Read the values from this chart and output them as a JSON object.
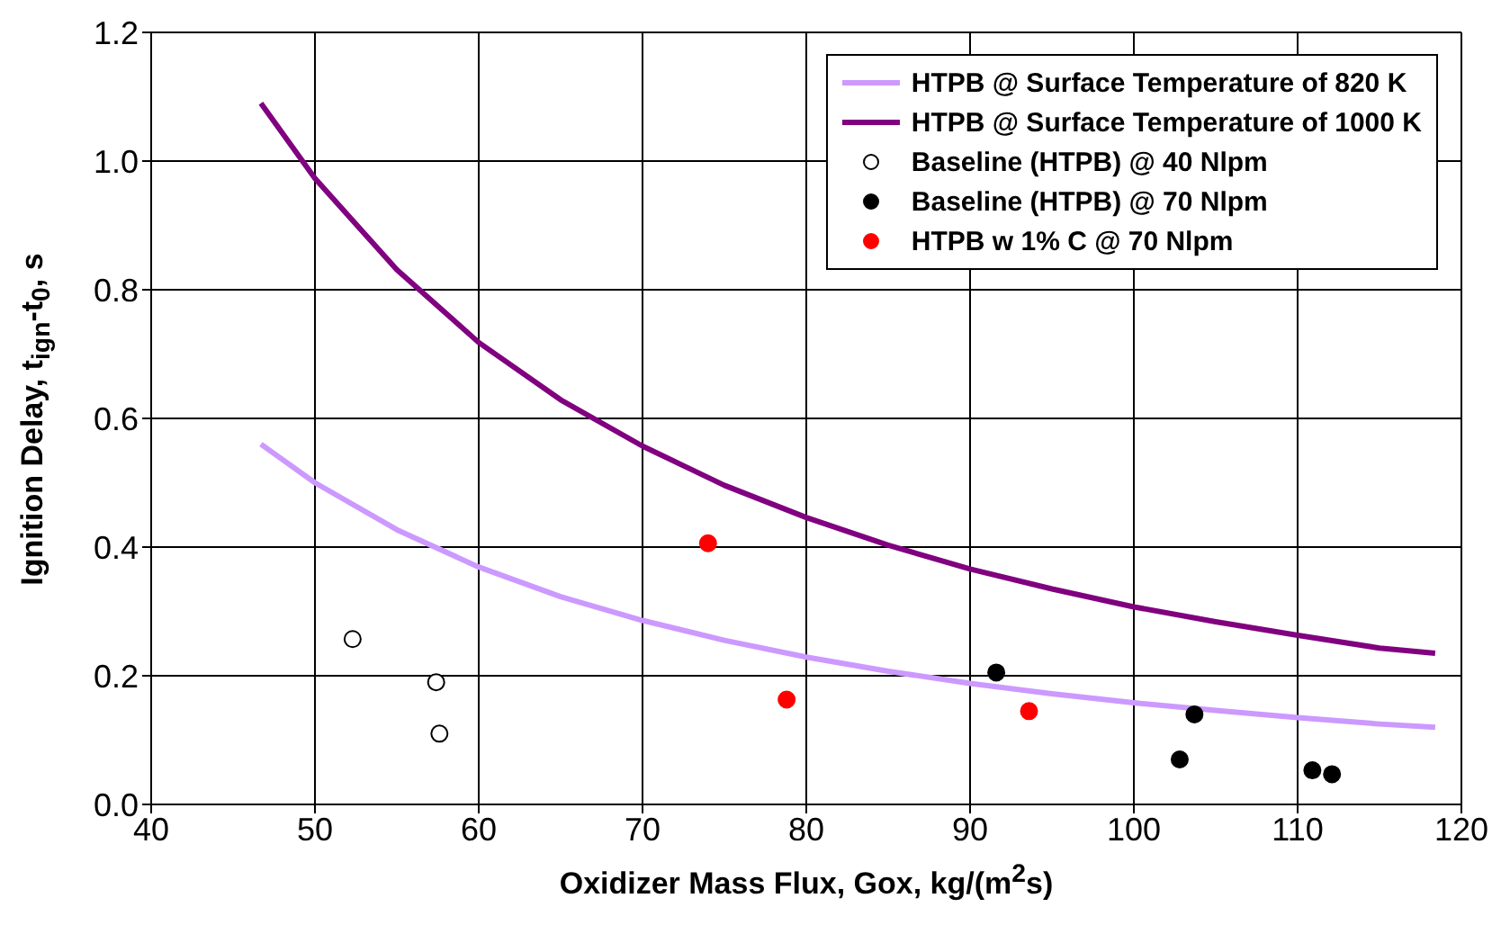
{
  "chart_data": {
    "type": "scatter",
    "xlabel": "Oxidizer Mass Flux, Gox, kg/(m$^{2}$s)",
    "ylabel": "Ignition Delay, t$_{ign}$-t$_{0}$, s",
    "xlim": [
      40,
      120
    ],
    "xticks": [
      40,
      50,
      60,
      70,
      80,
      90,
      100,
      110,
      120
    ],
    "ylim": [
      0,
      1.2
    ],
    "yticks": [
      {
        "value": 0,
        "label": "0.0"
      },
      0.2,
      0.4,
      0.6,
      0.8,
      {
        "value": 1,
        "label": "1.0"
      },
      1.2
    ],
    "grid": true,
    "legend": "top right",
    "series": [
      {
        "name": "HTPB @ Surface Temperature of 820 K",
        "type": "line",
        "marker": "none",
        "color": "#cc99ff",
        "x": [
          46.7,
          50,
          55,
          60,
          65,
          70,
          75,
          80,
          85,
          90,
          95,
          100,
          105,
          110,
          115,
          118.4
        ],
        "values": [
          0.56,
          0.5,
          0.427,
          0.369,
          0.323,
          0.286,
          0.255,
          0.229,
          0.207,
          0.188,
          0.172,
          0.158,
          0.146,
          0.135,
          0.125,
          0.12
        ]
      },
      {
        "name": "HTPB @ Surface Temperature of 1000 K",
        "type": "line",
        "marker": "none",
        "color": "#800080",
        "x": [
          46.7,
          50,
          55,
          60,
          65,
          70,
          75,
          80,
          85,
          90,
          95,
          100,
          105,
          110,
          115,
          118.4
        ],
        "values": [
          1.09,
          0.973,
          0.831,
          0.718,
          0.629,
          0.557,
          0.496,
          0.446,
          0.403,
          0.366,
          0.335,
          0.307,
          0.284,
          0.263,
          0.243,
          0.235
        ]
      },
      {
        "name": "Baseline (HTPB) @ 40 Nlpm",
        "marker": "circle",
        "color": "#ffffff",
        "x": [
          52.3,
          57.4,
          57.6
        ],
        "values": [
          0.257,
          0.19,
          0.11
        ]
      },
      {
        "name": "Baseline (HTPB) @ 70 Nlpm",
        "marker": "circle",
        "color": "#000000",
        "x": [
          91.6,
          103.7,
          102.8,
          110.9,
          112.1
        ],
        "values": [
          0.205,
          0.14,
          0.07,
          0.053,
          0.047
        ]
      },
      {
        "name": "HTPB w 1% C @ 70 Nlpm",
        "marker": "circle",
        "color": "#ff0000",
        "x": [
          74,
          78.8,
          93.6
        ],
        "values": [
          0.406,
          0.163,
          0.145
        ]
      }
    ]
  }
}
